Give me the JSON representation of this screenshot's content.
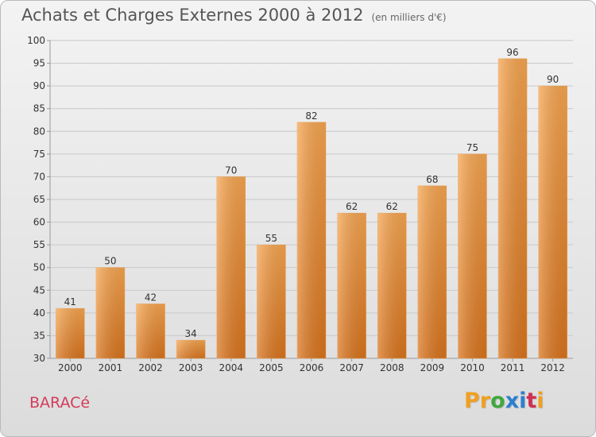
{
  "chart_data": {
    "type": "bar",
    "title": "Achats et Charges Externes 2000 à 2012",
    "subtitle": "(en milliers d'€)",
    "categories": [
      "2000",
      "2001",
      "2002",
      "2003",
      "2004",
      "2005",
      "2006",
      "2007",
      "2008",
      "2009",
      "2010",
      "2011",
      "2012"
    ],
    "values": [
      41,
      50,
      42,
      34,
      70,
      55,
      82,
      62,
      62,
      68,
      75,
      96,
      90
    ],
    "ylim": [
      30,
      100
    ],
    "yticks": [
      30,
      35,
      40,
      45,
      50,
      55,
      60,
      65,
      70,
      75,
      80,
      85,
      90,
      95,
      100
    ],
    "grid": true,
    "xlabel": "",
    "ylabel": "",
    "bar_color_top": "#f6a550",
    "bar_color_bottom": "#d9741d"
  },
  "footer": {
    "commune": "BARACé",
    "logo_letters": [
      "P",
      "r",
      "o",
      "x",
      "i",
      "t",
      "i"
    ],
    "logo_colors": [
      "#f0a020",
      "#f0a020",
      "#3fa83f",
      "#2c7fd0",
      "#2c7fd0",
      "#d03050",
      "#f0a020"
    ]
  }
}
